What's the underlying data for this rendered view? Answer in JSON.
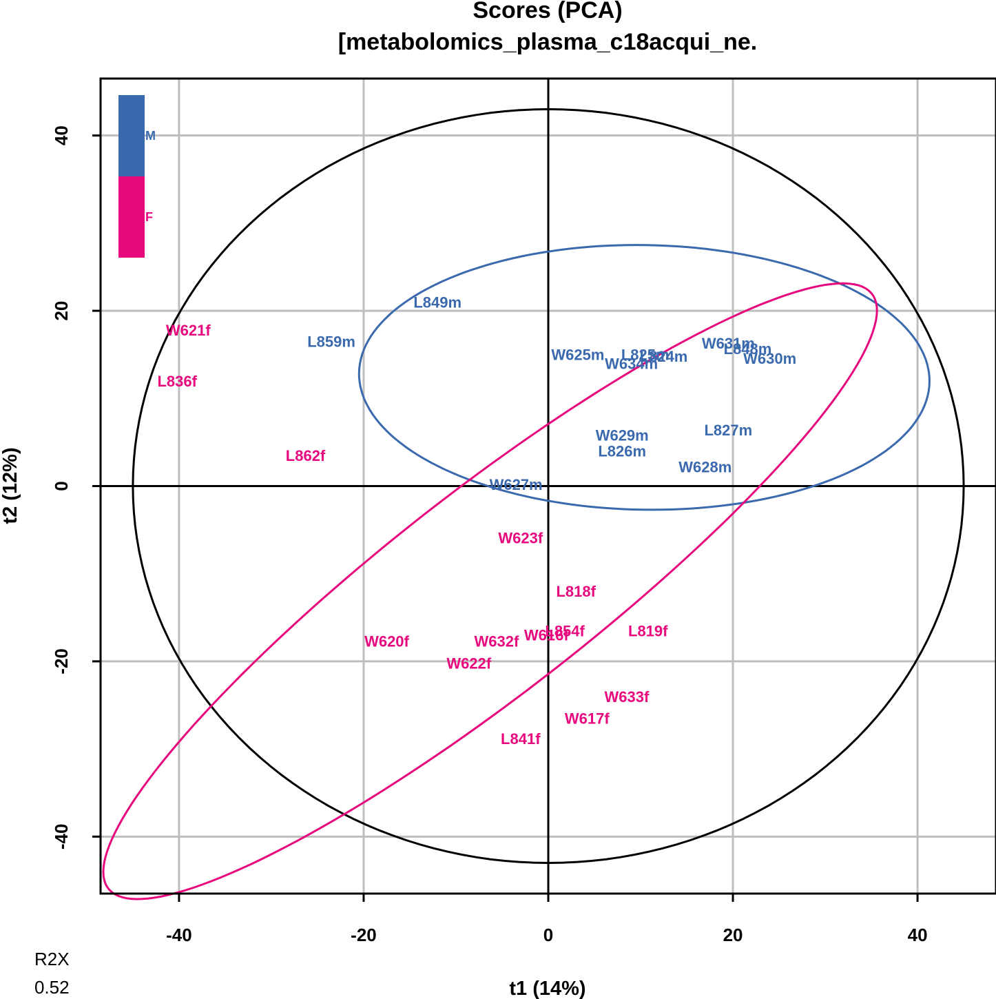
{
  "chart_data": {
    "type": "scatter",
    "title": [
      "Scores (PCA)",
      "[metabolomics_plasma_c18acqui_ne."
    ],
    "xlabel": "t1 (14%)",
    "ylabel": "t2 (12%)",
    "xlim": [
      -48.5,
      48.5
    ],
    "ylim": [
      -46.5,
      46.5
    ],
    "xticks": [
      -40,
      -20,
      0,
      20,
      40
    ],
    "yticks": [
      -40,
      -20,
      0,
      20,
      40
    ],
    "grid": true,
    "colors": {
      "M": "#3a69ad",
      "F": "#e8087e",
      "axis": "#000000",
      "grid": "#bebebe"
    },
    "legend": {
      "placement": "top-left",
      "entries": [
        {
          "label": "M",
          "color": "#3a69ad"
        },
        {
          "label": "F",
          "color": "#e8087e"
        }
      ]
    },
    "series": [
      {
        "name": "M",
        "points": [
          {
            "label": "L849m",
            "x": -12,
            "y": 21
          },
          {
            "label": "L859m",
            "x": -23.5,
            "y": 16.5
          },
          {
            "label": "W625m",
            "x": 3.2,
            "y": 15
          },
          {
            "label": "L825m",
            "x": 10.5,
            "y": 15
          },
          {
            "label": "L824m",
            "x": 12.5,
            "y": 14.8
          },
          {
            "label": "W634m",
            "x": 9,
            "y": 14
          },
          {
            "label": "W631m",
            "x": 19.5,
            "y": 16.3
          },
          {
            "label": "L848m",
            "x": 21.6,
            "y": 15.7
          },
          {
            "label": "W630m",
            "x": 24,
            "y": 14.6
          },
          {
            "label": "W629m",
            "x": 8,
            "y": 5.8
          },
          {
            "label": "L827m",
            "x": 19.5,
            "y": 6.4
          },
          {
            "label": "L826m",
            "x": 8,
            "y": 4
          },
          {
            "label": "W628m",
            "x": 17,
            "y": 2.2
          },
          {
            "label": "W627m",
            "x": -3.5,
            "y": 0.2
          }
        ]
      },
      {
        "name": "F",
        "points": [
          {
            "label": "W621f",
            "x": -39,
            "y": 17.8
          },
          {
            "label": "L836f",
            "x": -40.2,
            "y": 12
          },
          {
            "label": "L862f",
            "x": -26.3,
            "y": 3.5
          },
          {
            "label": "W623f",
            "x": -3,
            "y": -5.9
          },
          {
            "label": "L818f",
            "x": 3,
            "y": -12
          },
          {
            "label": "L854f",
            "x": 1.8,
            "y": -16.5
          },
          {
            "label": "W616f",
            "x": -0.2,
            "y": -17
          },
          {
            "label": "L819f",
            "x": 10.8,
            "y": -16.5
          },
          {
            "label": "W620f",
            "x": -17.5,
            "y": -17.7
          },
          {
            "label": "W632f",
            "x": -5.6,
            "y": -17.7
          },
          {
            "label": "W622f",
            "x": -8.6,
            "y": -20.2
          },
          {
            "label": "W633f",
            "x": 8.5,
            "y": -24
          },
          {
            "label": "W617f",
            "x": 4.2,
            "y": -26.5
          },
          {
            "label": "L841f",
            "x": -3,
            "y": -28.8
          }
        ]
      }
    ],
    "ellipses": [
      {
        "name": "Hotelling T2",
        "cx": 0,
        "cy": 0,
        "rx": 45,
        "ry": 43,
        "angle": 0,
        "color": "#000000"
      },
      {
        "name": "M",
        "cx": 10.4,
        "cy": 12.4,
        "rx": 30.9,
        "ry": 15.1,
        "angle": -1,
        "color": "#3a69ad"
      },
      {
        "name": "F",
        "cx": -6.3,
        "cy": -12,
        "rx": 53.5,
        "ry": 11.3,
        "angle": 39.5,
        "color": "#e8087e"
      }
    ],
    "annotation": {
      "label": "R2X",
      "value": "0.52"
    }
  }
}
